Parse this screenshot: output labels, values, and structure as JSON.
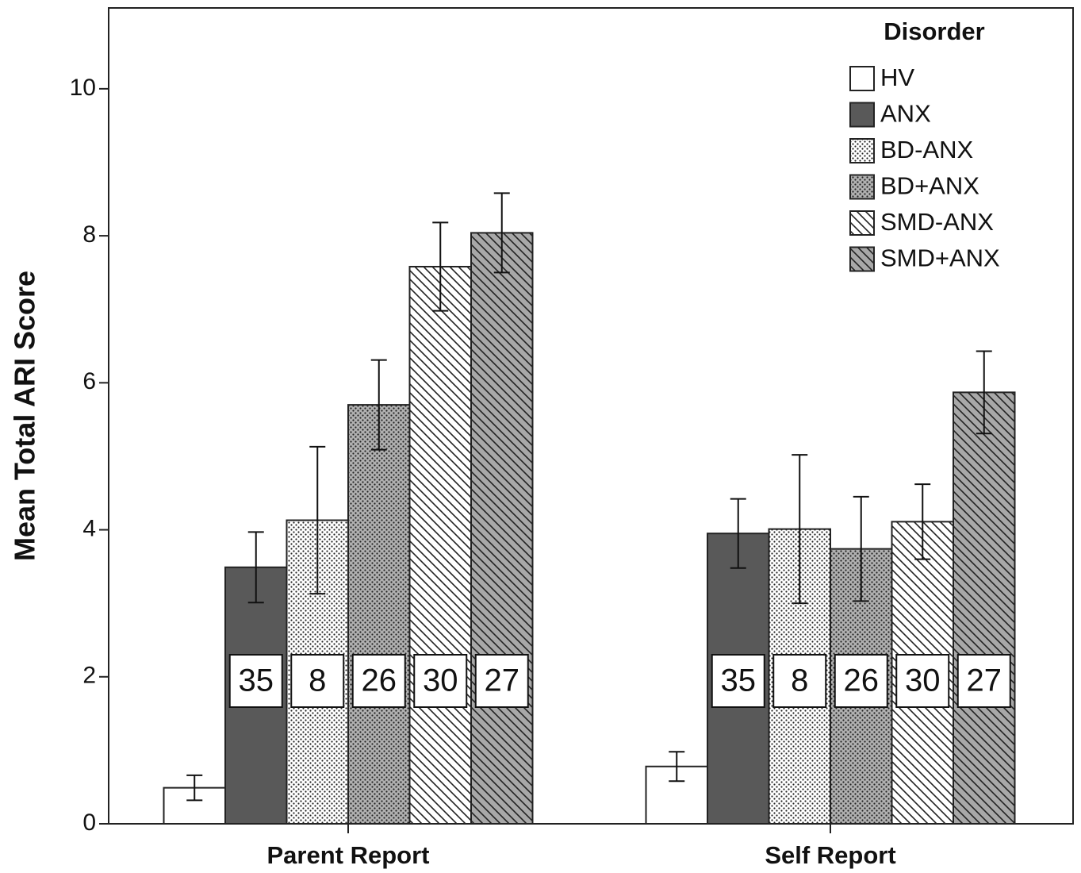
{
  "chart_data": {
    "type": "bar",
    "y_label": "Mean Total ARI Score",
    "legend_title": "Disorder",
    "legend_position": "top-right",
    "categories": [
      "Parent Report",
      "Self Report"
    ],
    "ylim": [
      0,
      11.1
    ],
    "yticks": [
      0,
      2,
      4,
      6,
      8,
      10
    ],
    "series": [
      {
        "name": "HV",
        "color": "#ffffff",
        "pattern": "none",
        "values": [
          0.49,
          0.78
        ],
        "errors": [
          0.17,
          0.2
        ]
      },
      {
        "name": "ANX",
        "color": "#595959",
        "pattern": "none",
        "values": [
          3.49,
          3.95
        ],
        "errors": [
          0.48,
          0.47
        ],
        "n": [
          35,
          35
        ]
      },
      {
        "name": "BD-ANX",
        "color": "#ffffff",
        "pattern": "dots",
        "values": [
          4.13,
          4.01
        ],
        "errors": [
          1.0,
          1.01
        ],
        "n": [
          8,
          8
        ]
      },
      {
        "name": "BD+ANX",
        "color": "#b0b0b0",
        "pattern": "dots",
        "values": [
          5.7,
          3.74
        ],
        "errors": [
          0.61,
          0.71
        ],
        "n": [
          26,
          26
        ]
      },
      {
        "name": "SMD-ANX",
        "color": "#ffffff",
        "pattern": "diagonal",
        "values": [
          7.58,
          4.11
        ],
        "errors": [
          0.6,
          0.51
        ],
        "n": [
          30,
          30
        ]
      },
      {
        "name": "SMD+ANX",
        "color": "#a8a8a8",
        "pattern": "diagonal",
        "values": [
          8.04,
          5.87
        ],
        "errors": [
          0.54,
          0.56
        ],
        "n": [
          27,
          27
        ]
      }
    ]
  }
}
